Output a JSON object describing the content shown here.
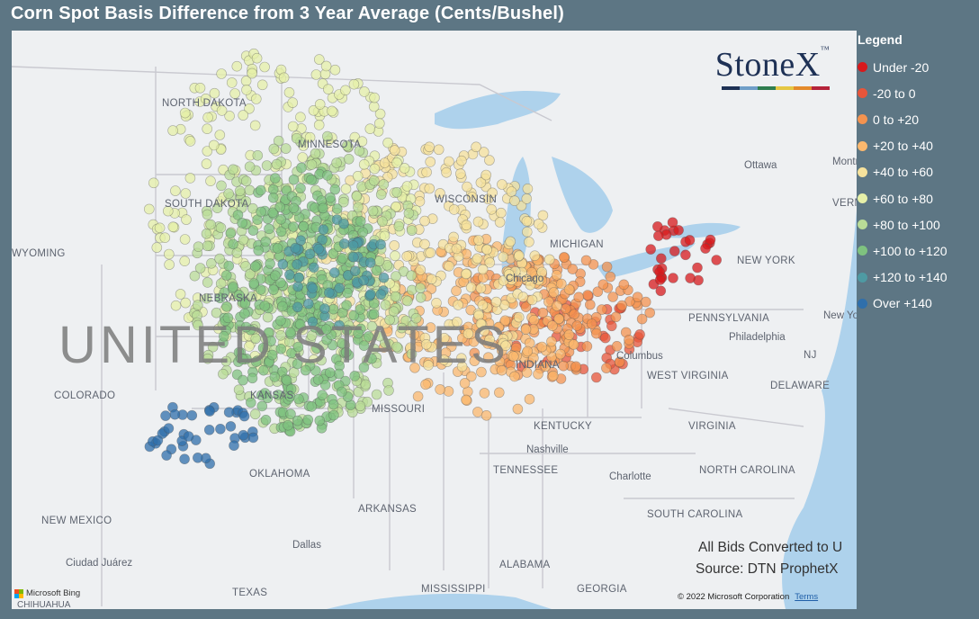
{
  "title": "Corn Spot Basis Difference from 3 Year Average (Cents/Bushel)",
  "logo": {
    "text": "StoneX",
    "tm": "™",
    "bar_colors": [
      "#1e3155",
      "#6f9ec8",
      "#2e7d4f",
      "#e5c743",
      "#e48a2b",
      "#b5233a"
    ]
  },
  "legend": {
    "title": "Legend",
    "items": [
      {
        "label": "Under -20",
        "color": "#d7191c"
      },
      {
        "label": "-20 to 0",
        "color": "#e8553a"
      },
      {
        "label": "0 to +20",
        "color": "#f4934f"
      },
      {
        "label": "+20 to +40",
        "color": "#fbb86e"
      },
      {
        "label": "+40 to +60",
        "color": "#f6e29c"
      },
      {
        "label": "+60 to +80",
        "color": "#e6f0a8"
      },
      {
        "label": "+80 to +100",
        "color": "#b9dc97"
      },
      {
        "label": "+100 to +120",
        "color": "#7fc27f"
      },
      {
        "label": "+120 to +140",
        "color": "#4e9aa3"
      },
      {
        "label": "Over +140",
        "color": "#2f6fab"
      }
    ]
  },
  "map": {
    "country_label": "UNITED STATES",
    "states": [
      "NORTH DAKOTA",
      "MINNESOTA",
      "SOUTH DAKOTA",
      "WYOMING",
      "NEBRASKA",
      "COLORADO",
      "KANSAS",
      "MISSOURI",
      "OKLAHOMA",
      "NEW MEXICO",
      "ARKANSAS",
      "TEXAS",
      "MISSISSIPPI",
      "ALABAMA",
      "GEORGIA",
      "TENNESSEE",
      "KENTUCKY",
      "WISCONSIN",
      "MICHIGAN",
      "INDIANA",
      "WEST VIRGINIA",
      "VIRGINIA",
      "NORTH CAROLINA",
      "SOUTH CAROLINA",
      "PENNSYLVANIA",
      "NEW YORK",
      "NJ",
      "DELAWARE",
      "VERMONT"
    ],
    "cities": [
      "Ottawa",
      "Montréal",
      "Chicago",
      "Columbus",
      "Philadelphia",
      "New York",
      "Nashville",
      "Charlotte",
      "Dallas",
      "Ciudad Juárez",
      "CHIHUAHUA"
    ],
    "zones": [
      {
        "color": "#d7191c",
        "count": 30
      },
      {
        "color": "#e8553a",
        "count": 45
      },
      {
        "color": "#f4934f",
        "count": 150
      },
      {
        "color": "#fbb86e",
        "count": 180
      },
      {
        "color": "#f6e29c",
        "count": 250
      },
      {
        "color": "#e6f0a8",
        "count": 300
      },
      {
        "color": "#b9dc97",
        "count": 350
      },
      {
        "color": "#7fc27f",
        "count": 340
      },
      {
        "color": "#4e9aa3",
        "count": 60
      },
      {
        "color": "#2f6fab",
        "count": 40
      }
    ]
  },
  "notes": {
    "line1": "All Bids Converted to U",
    "line2": "Source: DTN ProphetX"
  },
  "copyright": "© 2022 Microsoft Corporation",
  "terms": "Terms",
  "bing": "Microsoft Bing"
}
